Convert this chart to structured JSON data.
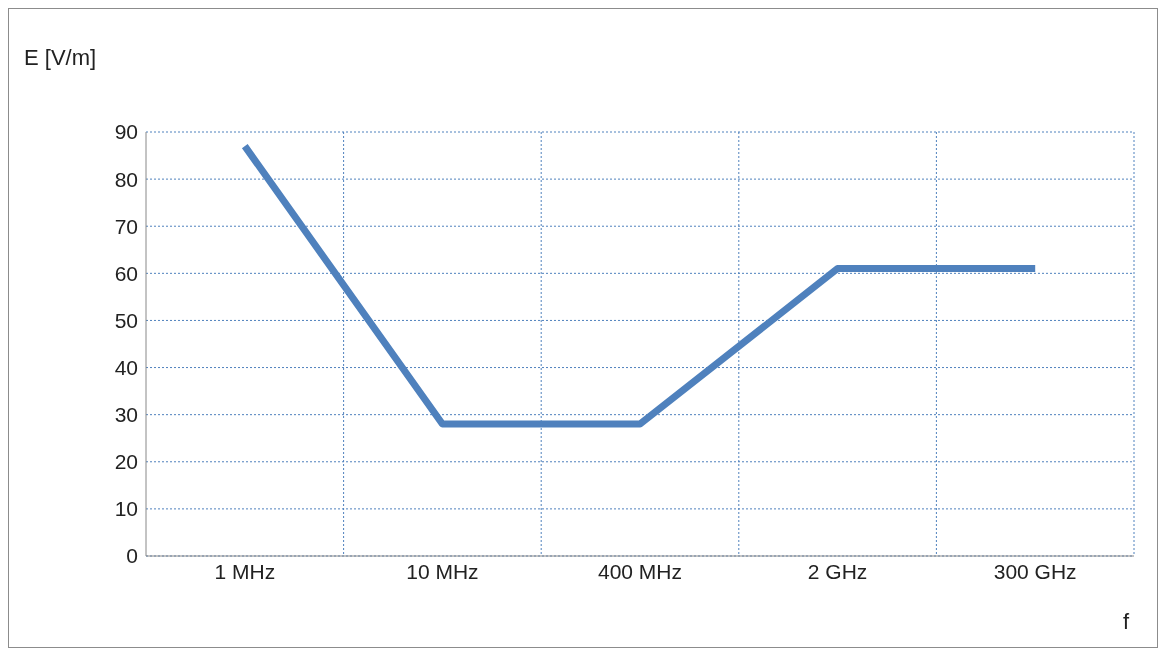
{
  "chart_data": {
    "type": "line",
    "xlabel": "f",
    "ylabel": "E [V/m]",
    "categories": [
      "1 MHz",
      "10 MHz",
      "400 MHz",
      "2 GHz",
      "300 GHz"
    ],
    "series": [
      {
        "color": "#4f81bd",
        "values": [
          87,
          28,
          28,
          61,
          61
        ]
      }
    ],
    "ylim": [
      0,
      90
    ],
    "yticks": [
      0,
      10,
      20,
      30,
      40,
      50,
      60,
      70,
      80,
      90
    ],
    "grid": true,
    "legend": false,
    "marker": "none",
    "line_style": "solid"
  }
}
